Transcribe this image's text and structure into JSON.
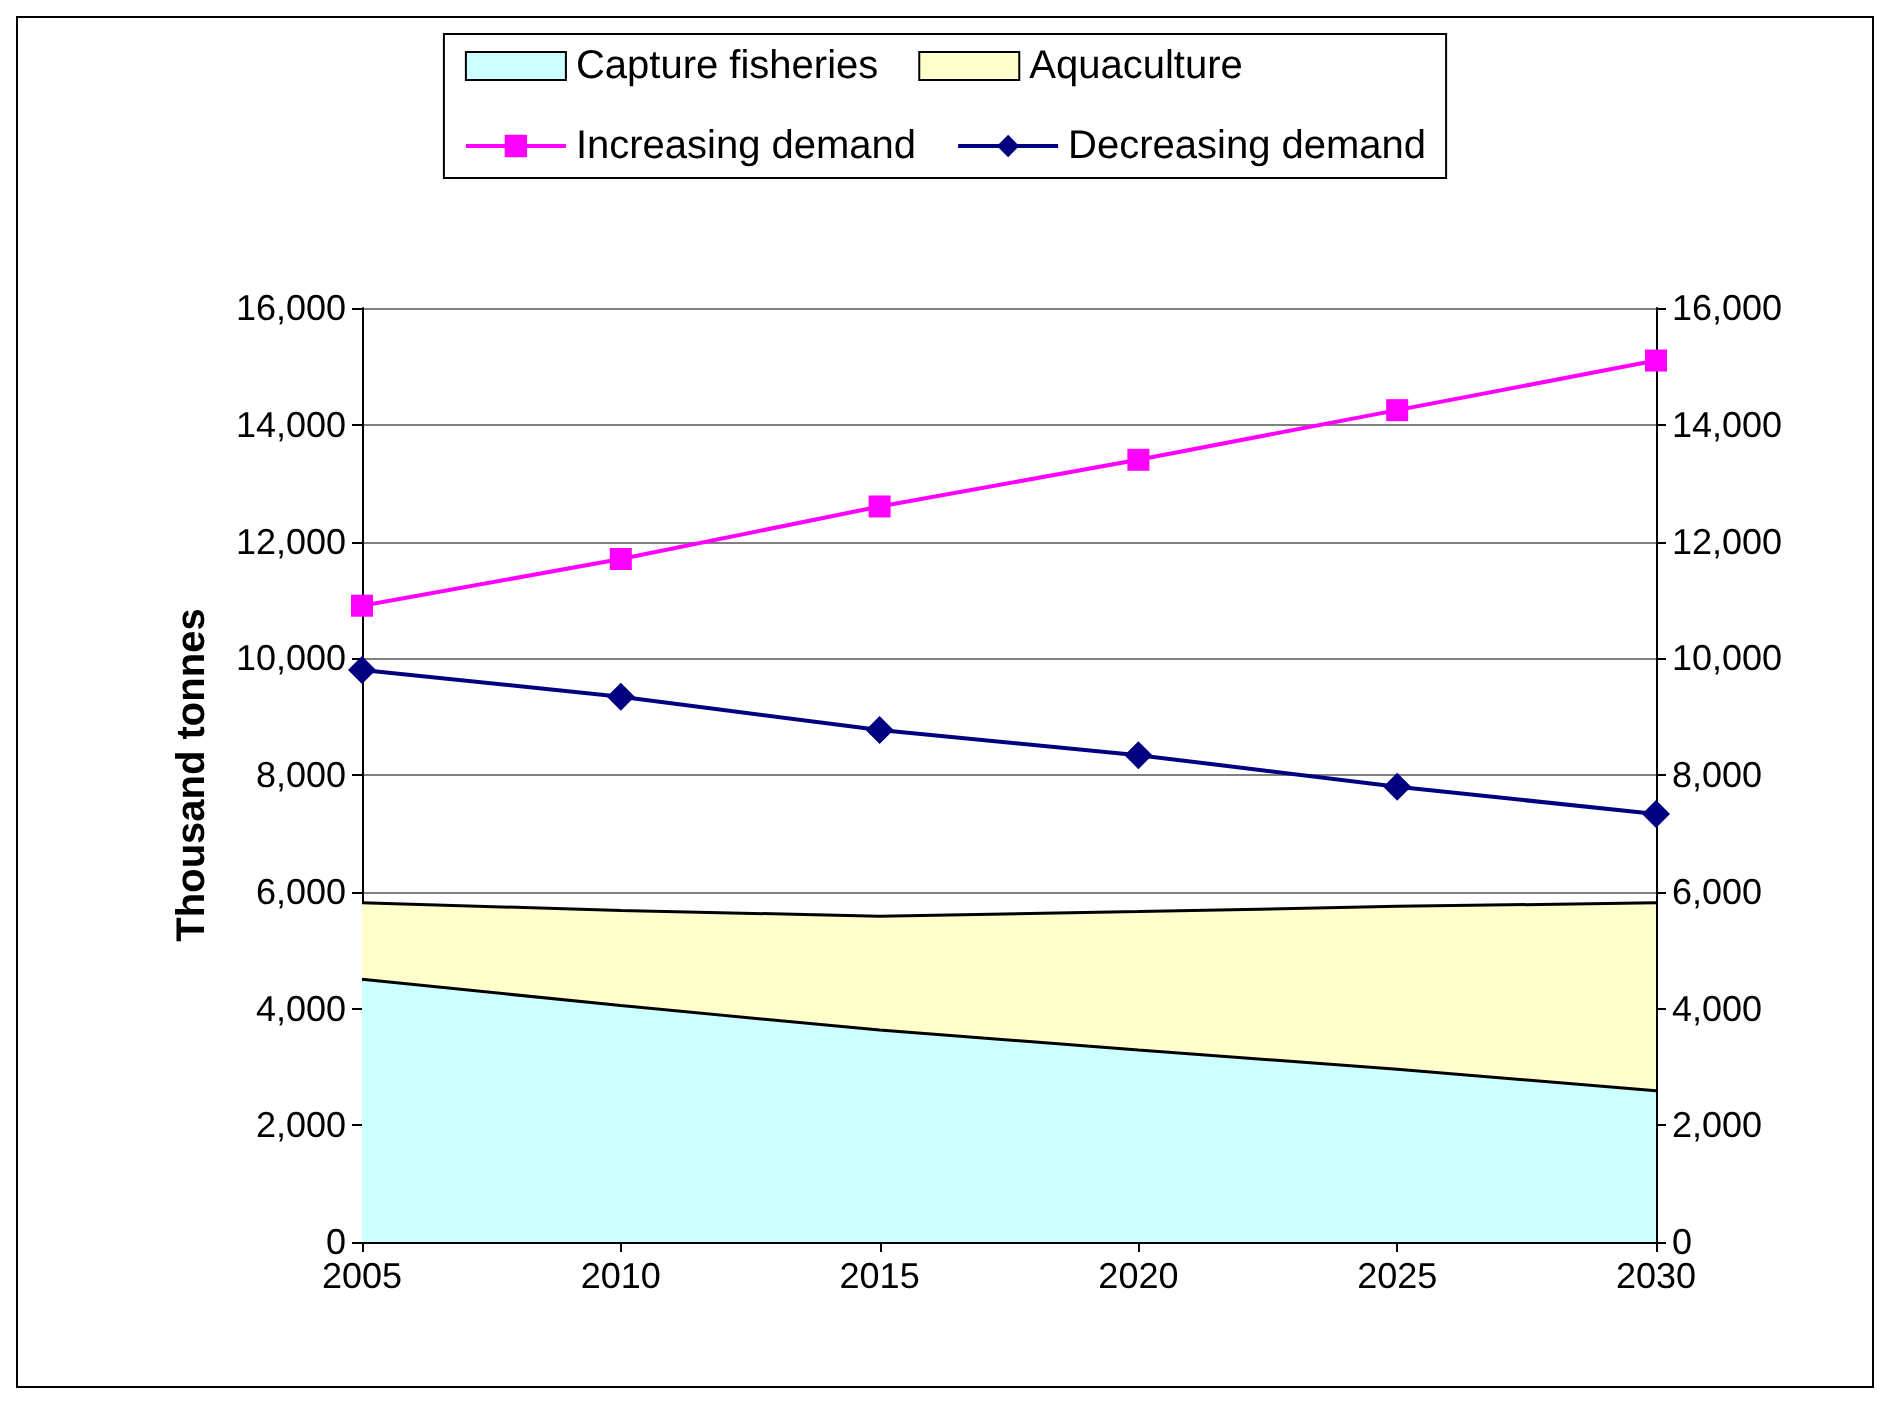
{
  "chart_data": {
    "type": "area",
    "ylabel": "Thousand tonnes",
    "categories": [
      "2005",
      "2010",
      "2015",
      "2020",
      "2025",
      "2030"
    ],
    "stacked": true,
    "series": [
      {
        "name": "Capture fisheries",
        "color": "#ccffff",
        "values": [
          4500,
          4050,
          3630,
          3290,
          2960,
          2590
        ]
      },
      {
        "name": "Aquaculture",
        "color": "#ffffcc",
        "values": [
          1310,
          1630,
          1950,
          2370,
          2790,
          3220
        ]
      },
      {
        "name": "Increasing demand",
        "type": "line",
        "color": "#ff00ff",
        "marker": "square",
        "values": [
          10900,
          11700,
          12600,
          13400,
          14250,
          15100
        ]
      },
      {
        "name": "Decreasing demand",
        "type": "line",
        "color": "#000080",
        "marker": "diamond",
        "values": [
          9800,
          9340,
          8770,
          8340,
          7800,
          7330
        ]
      }
    ],
    "ylim": [
      0,
      16000
    ],
    "yticks": [
      0,
      {
        "value": 2000,
        "label": "2,000"
      },
      {
        "value": 4000,
        "label": "4,000"
      },
      {
        "value": 6000,
        "label": "6,000"
      },
      {
        "value": 8000,
        "label": "8,000"
      },
      {
        "value": 10000,
        "label": "10,000"
      },
      {
        "value": 12000,
        "label": "12,000"
      },
      {
        "value": 14000,
        "label": "14,000"
      },
      {
        "value": 16000,
        "label": "16,000"
      }
    ],
    "y2lim": [
      0,
      16000
    ],
    "y2ticks": [
      0,
      {
        "value": 2000,
        "label": "2,000"
      },
      {
        "value": 4000,
        "label": "4,000"
      },
      {
        "value": 6000,
        "label": "6,000"
      },
      {
        "value": 8000,
        "label": "8,000"
      },
      {
        "value": 10000,
        "label": "10,000"
      },
      {
        "value": 12000,
        "label": "12,000"
      },
      {
        "value": 14000,
        "label": "14,000"
      },
      {
        "value": 16000,
        "label": "16,000"
      }
    ],
    "grid": "y",
    "legend": "top",
    "line_style": "solid"
  }
}
